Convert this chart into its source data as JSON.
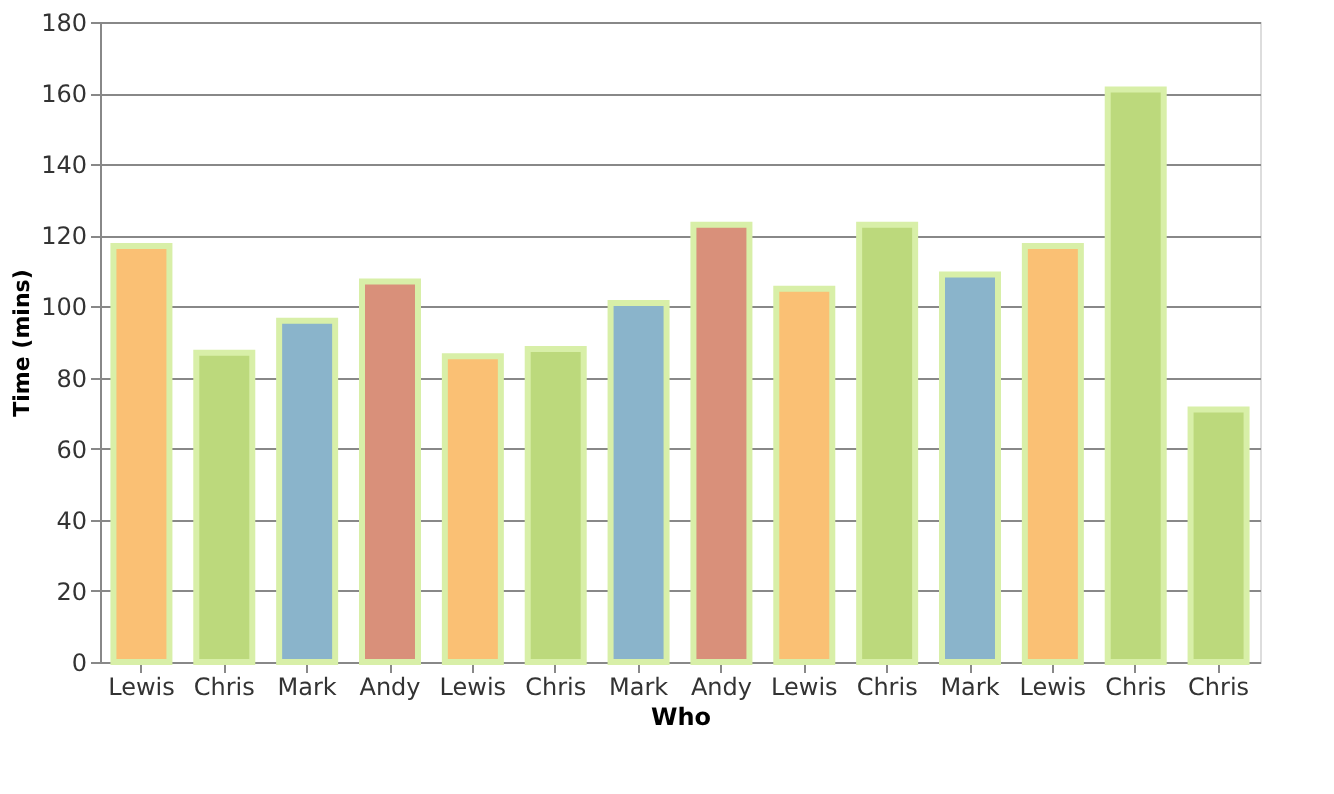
{
  "chart_data": {
    "type": "bar",
    "xlabel": "Who",
    "ylabel": "Time (mins)",
    "categories": [
      "Lewis",
      "Chris",
      "Mark",
      "Andy",
      "Lewis",
      "Chris",
      "Mark",
      "Andy",
      "Lewis",
      "Chris",
      "Mark",
      "Lewis",
      "Chris",
      "Chris"
    ],
    "values": [
      117,
      87,
      96,
      107,
      86,
      88,
      101,
      123,
      105,
      123,
      109,
      117,
      161,
      71
    ],
    "colors": [
      "#fac074",
      "#bcd97c",
      "#8ab4cb",
      "#d9907a",
      "#fac074",
      "#bcd97c",
      "#8ab4cb",
      "#d9907a",
      "#fac074",
      "#bcd97c",
      "#8ab4cb",
      "#fac074",
      "#bcd97c",
      "#bcd97c"
    ],
    "ylim": [
      0,
      180
    ],
    "yticks": [
      0,
      20,
      40,
      60,
      80,
      100,
      120,
      140,
      160,
      180
    ],
    "grid": "y"
  }
}
